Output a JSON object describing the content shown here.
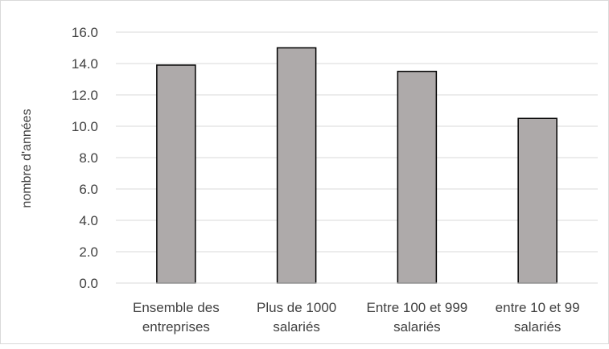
{
  "chart_data": {
    "type": "bar",
    "title": "",
    "xlabel": "",
    "ylabel": "nombre d'années",
    "categories": [
      [
        "Ensemble des",
        "entreprises"
      ],
      [
        "Plus de 1000",
        "salariés"
      ],
      [
        "Entre 100 et 999",
        "salariés"
      ],
      [
        "entre 10 et 99",
        "salariés"
      ]
    ],
    "values": [
      13.9,
      15.0,
      13.5,
      10.5
    ],
    "ylim": [
      0,
      16
    ],
    "yticks": [
      "0.0",
      "2.0",
      "4.0",
      "6.0",
      "8.0",
      "10.0",
      "12.0",
      "14.0",
      "16.0"
    ],
    "grid": true,
    "legend": "none",
    "colors": {
      "bar_fill": "#aeaaaa",
      "bar_stroke": "#000000",
      "grid": "#d9d9d9",
      "axis": "#d9d9d9",
      "text": "#404040"
    }
  }
}
